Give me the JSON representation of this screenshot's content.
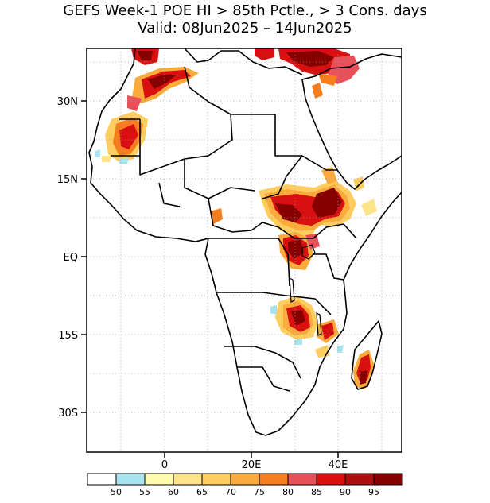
{
  "title": {
    "line1": "GEFS Week-1 POE HI > 85th Pctle., > 3 Cons. days",
    "line2": "Valid: 08Jun2025 – 14Jun2025"
  },
  "axes": {
    "lat_labels": [
      "30N",
      "15N",
      "EQ",
      "15S",
      "30S"
    ],
    "lon_labels": [
      "0",
      "20E",
      "40E"
    ]
  },
  "colorbar": {
    "labels": [
      "50",
      "55",
      "60",
      "65",
      "70",
      "75",
      "80",
      "85",
      "90",
      "95"
    ],
    "colors": [
      "#ffffff",
      "#a9e3f0",
      "#fdfbb0",
      "#fde48a",
      "#fdcd5f",
      "#fbaa3c",
      "#f67e1f",
      "#e8515a",
      "#d81010",
      "#ab0f0f",
      "#870000"
    ]
  }
}
